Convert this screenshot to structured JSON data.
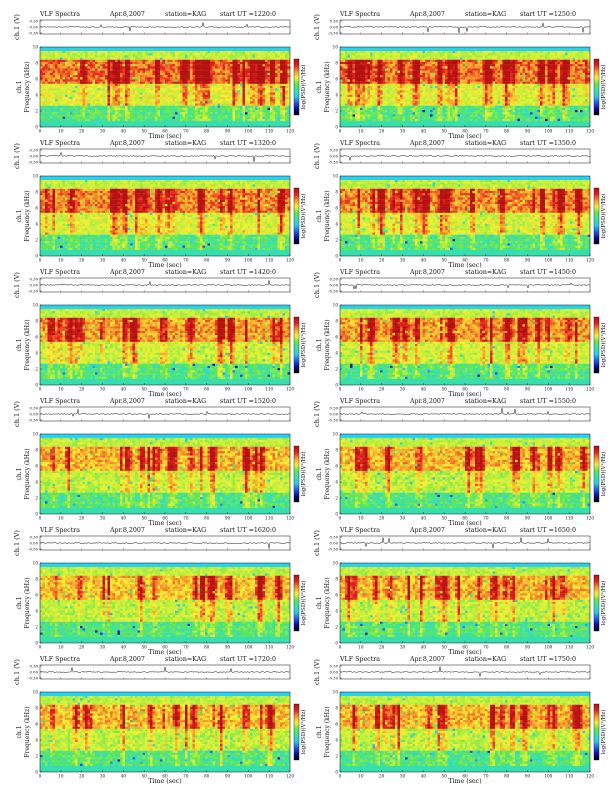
{
  "header": {
    "title": "VLF Spectra",
    "date": "Apr.8,2007",
    "station": "station=KAG",
    "start_prefix": "start  UT  ="
  },
  "labels": {
    "amp_ylabel": "ch.1 (V)",
    "freq_ylabel": "Frequency  (kHz)",
    "channel_label": "ch.1",
    "xlabel": "Time  (sec)",
    "colorbar_label": "log(PSD)(V²/Hz)"
  },
  "colors": {
    "scale": [
      "#0c0c9a",
      "#1e5fe6",
      "#2fc8ee",
      "#38e2a8",
      "#62e552",
      "#b6ef3e",
      "#f7f032",
      "#f59a2a",
      "#e32020",
      "#b31010"
    ],
    "colorbar_stops": [
      "#b31010",
      "#e32020",
      "#f59a2a",
      "#f7f032",
      "#62e552",
      "#38e2a8",
      "#2fc8ee",
      "#1e5fe6",
      "#0c0c9a",
      "#000000"
    ],
    "trace": "#111111",
    "cyan_band": "#2ad2f2"
  },
  "chart_data": [
    {
      "type": "heatmap",
      "start_ut": "1220:0",
      "x_ticks": [
        0,
        10,
        20,
        30,
        40,
        50,
        60,
        70,
        80,
        90,
        100,
        110,
        120
      ],
      "xlim": [
        0,
        120
      ],
      "freq_ticks": [
        0,
        2,
        4,
        6,
        8,
        10
      ],
      "freq_lim": [
        0,
        10
      ],
      "amp_ticks": [
        "0.30",
        "0.00",
        "-0.30"
      ],
      "amp_lim": [
        -0.3,
        0.3
      ],
      "activity": 1.0,
      "seed": 11
    },
    {
      "type": "heatmap",
      "start_ut": "1250:0",
      "x_ticks": [
        0,
        10,
        20,
        30,
        40,
        50,
        60,
        70,
        80,
        90,
        100,
        110,
        120
      ],
      "xlim": [
        0,
        120
      ],
      "freq_ticks": [
        0,
        2,
        4,
        6,
        8,
        10
      ],
      "freq_lim": [
        0,
        10
      ],
      "amp_ticks": [
        "0.30",
        "0.00",
        "-0.30"
      ],
      "amp_lim": [
        -0.3,
        0.3
      ],
      "activity": 0.95,
      "seed": 23
    },
    {
      "type": "heatmap",
      "start_ut": "1320:0",
      "x_ticks": [
        0,
        10,
        20,
        30,
        40,
        50,
        60,
        70,
        80,
        90,
        100,
        110,
        120
      ],
      "xlim": [
        0,
        120
      ],
      "freq_ticks": [
        0,
        2,
        4,
        6,
        8,
        10
      ],
      "freq_lim": [
        0,
        10
      ],
      "amp_ticks": [
        "0.30",
        "0.00",
        "-0.30"
      ],
      "amp_lim": [
        -0.3,
        0.3
      ],
      "activity": 0.85,
      "seed": 37
    },
    {
      "type": "heatmap",
      "start_ut": "1350:0",
      "x_ticks": [
        0,
        10,
        20,
        30,
        40,
        50,
        60,
        70,
        80,
        90,
        100,
        110,
        120
      ],
      "xlim": [
        0,
        120
      ],
      "freq_ticks": [
        0,
        2,
        4,
        6,
        8,
        10
      ],
      "freq_lim": [
        0,
        10
      ],
      "amp_ticks": [
        "0.30",
        "0.00",
        "-0.30"
      ],
      "amp_lim": [
        -0.3,
        0.3
      ],
      "activity": 0.8,
      "seed": 41
    },
    {
      "type": "heatmap",
      "start_ut": "1420:0",
      "x_ticks": [
        0,
        10,
        20,
        30,
        40,
        50,
        60,
        70,
        80,
        90,
        100,
        110,
        120
      ],
      "xlim": [
        0,
        120
      ],
      "freq_ticks": [
        0,
        2,
        4,
        6,
        8,
        10
      ],
      "freq_lim": [
        0,
        10
      ],
      "amp_ticks": [
        "0.30",
        "0.00",
        "-0.30"
      ],
      "amp_lim": [
        -0.3,
        0.3
      ],
      "activity": 0.7,
      "seed": 53
    },
    {
      "type": "heatmap",
      "start_ut": "1450:0",
      "x_ticks": [
        0,
        10,
        20,
        30,
        40,
        50,
        60,
        70,
        80,
        90,
        100,
        110,
        120
      ],
      "xlim": [
        0,
        120
      ],
      "freq_ticks": [
        0,
        2,
        4,
        6,
        8,
        10
      ],
      "freq_lim": [
        0,
        10
      ],
      "amp_ticks": [
        "0.30",
        "0.00",
        "-0.30"
      ],
      "amp_lim": [
        -0.3,
        0.3
      ],
      "activity": 0.72,
      "seed": 67
    },
    {
      "type": "heatmap",
      "start_ut": "1520:0",
      "x_ticks": [
        0,
        10,
        20,
        30,
        40,
        50,
        60,
        70,
        80,
        90,
        100,
        110,
        120
      ],
      "xlim": [
        0,
        120
      ],
      "freq_ticks": [
        0,
        2,
        4,
        6,
        8,
        10
      ],
      "freq_lim": [
        0,
        10
      ],
      "amp_ticks": [
        "0.30",
        "0.00",
        "-0.30"
      ],
      "amp_lim": [
        -0.3,
        0.3
      ],
      "activity": 0.55,
      "seed": 71
    },
    {
      "type": "heatmap",
      "start_ut": "1550:0",
      "x_ticks": [
        0,
        10,
        20,
        30,
        40,
        50,
        60,
        70,
        80,
        90,
        100,
        110,
        120
      ],
      "xlim": [
        0,
        120
      ],
      "freq_ticks": [
        0,
        2,
        4,
        6,
        8,
        10
      ],
      "freq_lim": [
        0,
        10
      ],
      "amp_ticks": [
        "0.30",
        "0.00",
        "-0.30"
      ],
      "amp_lim": [
        -0.3,
        0.3
      ],
      "activity": 0.55,
      "seed": 83
    },
    {
      "type": "heatmap",
      "start_ut": "1620:0",
      "x_ticks": [
        0,
        10,
        20,
        30,
        40,
        50,
        60,
        70,
        80,
        90,
        100,
        110,
        120
      ],
      "xlim": [
        0,
        120
      ],
      "freq_ticks": [
        0,
        2,
        4,
        6,
        8,
        10
      ],
      "freq_lim": [
        0,
        10
      ],
      "amp_ticks": [
        "0.30",
        "0.00",
        "-0.30"
      ],
      "amp_lim": [
        -0.3,
        0.3
      ],
      "activity": 0.5,
      "seed": 97
    },
    {
      "type": "heatmap",
      "start_ut": "1650:0",
      "x_ticks": [
        0,
        10,
        20,
        30,
        40,
        50,
        60,
        70,
        80,
        90,
        100,
        110,
        120
      ],
      "xlim": [
        0,
        120
      ],
      "freq_ticks": [
        0,
        2,
        4,
        6,
        8,
        10
      ],
      "freq_lim": [
        0,
        10
      ],
      "amp_ticks": [
        "0.30",
        "0.00",
        "-0.30"
      ],
      "amp_lim": [
        -0.3,
        0.3
      ],
      "activity": 0.55,
      "seed": 101
    },
    {
      "type": "heatmap",
      "start_ut": "1720:0",
      "x_ticks": [
        0,
        10,
        20,
        30,
        40,
        50,
        60,
        70,
        80,
        90,
        100,
        110,
        120
      ],
      "xlim": [
        0,
        120
      ],
      "freq_ticks": [
        0,
        2,
        4,
        6,
        8,
        10
      ],
      "freq_lim": [
        0,
        10
      ],
      "amp_ticks": [
        "0.30",
        "0.00",
        "-0.30"
      ],
      "amp_lim": [
        -0.3,
        0.3
      ],
      "activity": 0.5,
      "seed": 113
    },
    {
      "type": "heatmap",
      "start_ut": "1750:0",
      "x_ticks": [
        0,
        10,
        20,
        30,
        40,
        50,
        60,
        70,
        80,
        90,
        100,
        110,
        120
      ],
      "xlim": [
        0,
        120
      ],
      "freq_ticks": [
        0,
        2,
        4,
        6,
        8,
        10
      ],
      "freq_lim": [
        0,
        10
      ],
      "amp_ticks": [
        "0.30",
        "0.00",
        "-0.30"
      ],
      "amp_lim": [
        -0.3,
        0.3
      ],
      "activity": 0.55,
      "seed": 127
    }
  ]
}
